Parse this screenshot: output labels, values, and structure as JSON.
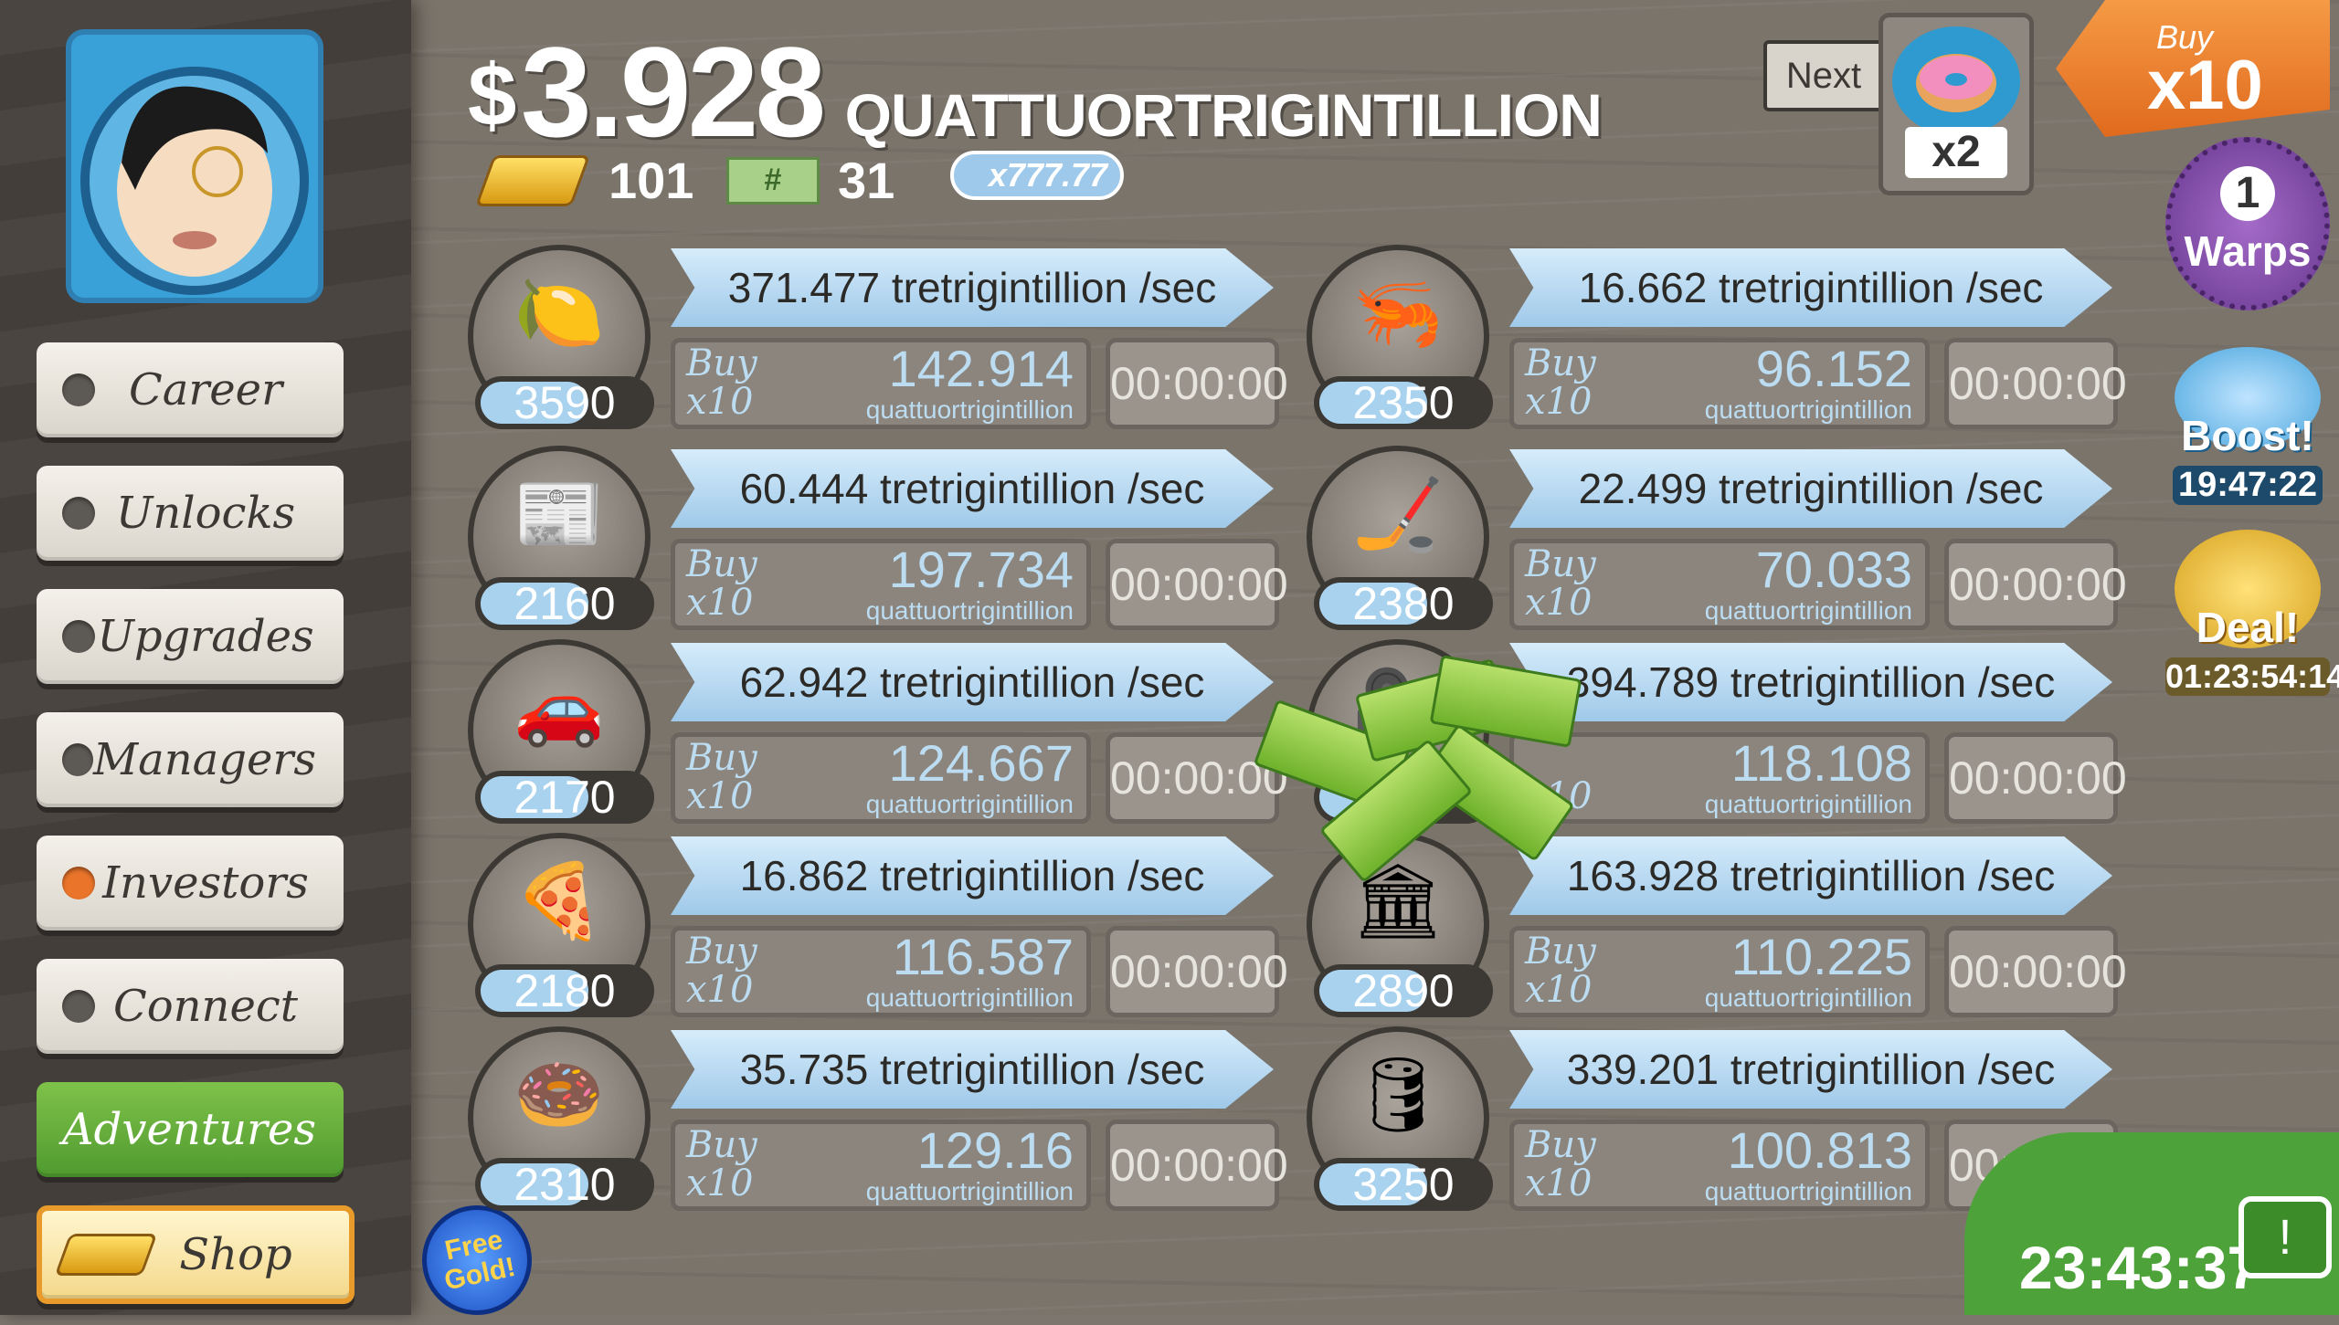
{
  "navigation": {
    "items": [
      {
        "label": "Career"
      },
      {
        "label": "Unlocks"
      },
      {
        "label": "Upgrades"
      },
      {
        "label": "Managers"
      },
      {
        "label": "Investors"
      },
      {
        "label": "Connect"
      },
      {
        "label": "Adventures"
      },
      {
        "label": "Shop"
      }
    ],
    "free_gold": "Free Gold!"
  },
  "header": {
    "currency_symbol": "$",
    "amount": "3.928",
    "unit": "QUATTUORTRIGINTILLION",
    "gold_count": "101",
    "ticket_count": "31",
    "multiplier": "x777.77",
    "next_label": "Next",
    "next_multiplier": "x2",
    "buy_label": "Buy",
    "buy_amount": "x10"
  },
  "badges": {
    "warps_count": "1",
    "warps_label": "Warps",
    "boost_label": "Boost!",
    "boost_timer": "19:47:22",
    "deal_label": "Deal!",
    "deal_timer": "01:23:54:14"
  },
  "businesses": [
    {
      "icon": "lemon-icon",
      "owned": "3590",
      "revenue": "371.477 tretrigintillion /sec",
      "buy_line1": "Buy",
      "buy_line2": "x10",
      "cost": "142.914",
      "cost_unit": "quattuortrigintillion",
      "timer": "00:00:00"
    },
    {
      "icon": "shrimp-icon",
      "owned": "2350",
      "revenue": "16.662 tretrigintillion /sec",
      "buy_line1": "Buy",
      "buy_line2": "x10",
      "cost": "96.152",
      "cost_unit": "quattuortrigintillion",
      "timer": "00:00:00"
    },
    {
      "icon": "newspaper-icon",
      "owned": "2160",
      "revenue": "60.444 tretrigintillion /sec",
      "buy_line1": "Buy",
      "buy_line2": "x10",
      "cost": "197.734",
      "cost_unit": "quattuortrigintillion",
      "timer": "00:00:00"
    },
    {
      "icon": "hockey-icon",
      "owned": "2380",
      "revenue": "22.499 tretrigintillion /sec",
      "buy_line1": "Buy",
      "buy_line2": "x10",
      "cost": "70.033",
      "cost_unit": "quattuortrigintillion",
      "timer": "00:00:00"
    },
    {
      "icon": "car-wash-icon",
      "owned": "2170",
      "revenue": "62.942 tretrigintillion /sec",
      "buy_line1": "Buy",
      "buy_line2": "x10",
      "cost": "124.667",
      "cost_unit": "quattuortrigintillion",
      "timer": "00:00:00"
    },
    {
      "icon": "movie-camera-icon",
      "owned": "",
      "revenue": "394.789 tretrigintillion /sec",
      "buy_line1": "",
      "buy_line2": "x10",
      "cost": "118.108",
      "cost_unit": "quattuortrigintillion",
      "timer": "00:00:00"
    },
    {
      "icon": "pizza-icon",
      "owned": "2180",
      "revenue": "16.862 tretrigintillion /sec",
      "buy_line1": "Buy",
      "buy_line2": "x10",
      "cost": "116.587",
      "cost_unit": "quattuortrigintillion",
      "timer": "00:00:00"
    },
    {
      "icon": "bank-icon",
      "owned": "2890",
      "revenue": "163.928 tretrigintillion /sec",
      "buy_line1": "Buy",
      "buy_line2": "x10",
      "cost": "110.225",
      "cost_unit": "quattuortrigintillion",
      "timer": "00:00:00"
    },
    {
      "icon": "donut-icon",
      "owned": "2310",
      "revenue": "35.735 tretrigintillion /sec",
      "buy_line1": "Buy",
      "buy_line2": "x10",
      "cost": "129.16",
      "cost_unit": "quattuortrigintillion",
      "timer": "00:00:00"
    },
    {
      "icon": "oil-rig-icon",
      "owned": "3250",
      "revenue": "339.201 tretrigintillion /sec",
      "buy_line1": "Buy",
      "buy_line2": "x10",
      "cost": "100.813",
      "cost_unit": "quattuortrigintillion",
      "timer": "00:00:00"
    }
  ],
  "footer": {
    "clock": "23:43:37"
  },
  "colors": {
    "accent_green": "#4da33a",
    "buy_orange": "#e06a1e",
    "revenue_blue": "#9fc9e9"
  }
}
